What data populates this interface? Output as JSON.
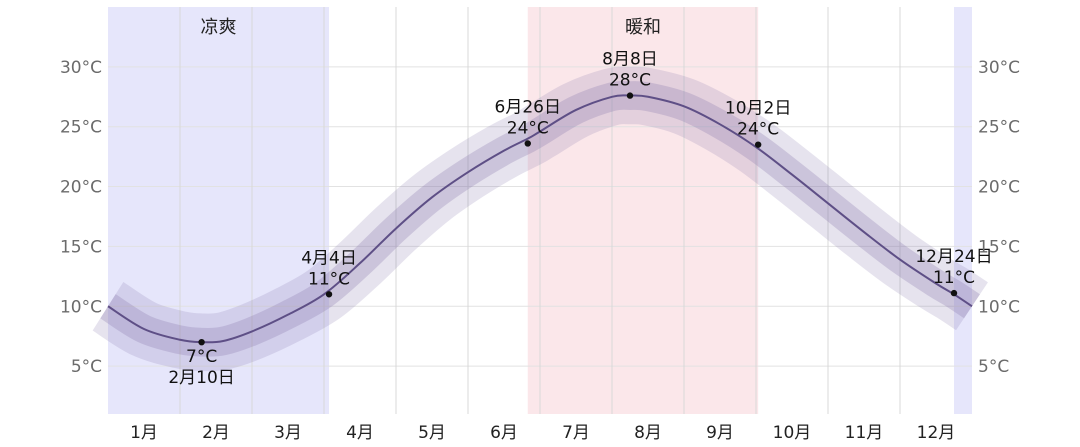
{
  "chart_data": {
    "type": "line",
    "title": "",
    "xlabel": "",
    "ylabel": "",
    "x_range_months": [
      0,
      12
    ],
    "ylim": [
      1,
      35
    ],
    "y_ticks": [
      5,
      10,
      15,
      20,
      25,
      30
    ],
    "y_tick_labels": [
      "5°C",
      "10°C",
      "15°C",
      "20°C",
      "25°C",
      "30°C"
    ],
    "months": [
      "1月",
      "2月",
      "3月",
      "4月",
      "5月",
      "6月",
      "7月",
      "8月",
      "9月",
      "10月",
      "11月",
      "12月"
    ],
    "bands": [
      {
        "label": "凉爽",
        "start": 0,
        "end": 3.07,
        "color": "#e6e6fb"
      },
      {
        "label": "暖和",
        "start": 5.83,
        "end": 9.03,
        "color": "#fbe7ea"
      },
      {
        "label": "",
        "start": 11.75,
        "end": 12,
        "color": "#e6e6fb"
      }
    ],
    "series": [
      {
        "color": "#5e4f86",
        "x": [
          0,
          0.5,
          1,
          1.3,
          1.6,
          2,
          2.5,
          3,
          3.5,
          4,
          4.5,
          5,
          5.5,
          5.83,
          6,
          6.5,
          7,
          7.25,
          7.5,
          8,
          8.5,
          9,
          9.5,
          10,
          10.5,
          11,
          11.5,
          11.75,
          12
        ],
        "y": [
          10.0,
          8.1,
          7.2,
          7.0,
          7.1,
          7.9,
          9.3,
          11.0,
          13.6,
          16.5,
          19.1,
          21.2,
          23.0,
          24.0,
          24.6,
          26.4,
          27.5,
          27.6,
          27.5,
          26.7,
          25.2,
          23.3,
          21.0,
          18.6,
          16.2,
          13.9,
          11.9,
          11.0,
          10.0
        ],
        "band_inner": 1.2,
        "band_outer": 2.4
      }
    ],
    "annotations": [
      {
        "x": 1.3,
        "y": 7,
        "lines": [
          "7°C",
          "2月10日"
        ],
        "position": "below"
      },
      {
        "x": 3.07,
        "y": 11,
        "lines": [
          "4月4日",
          "11°C"
        ],
        "position": "above"
      },
      {
        "x": 5.83,
        "y": 23.6,
        "lines": [
          "6月26日",
          "24°C"
        ],
        "position": "above"
      },
      {
        "x": 7.25,
        "y": 27.6,
        "lines": [
          "8月8日",
          "28°C"
        ],
        "position": "above"
      },
      {
        "x": 9.03,
        "y": 23.5,
        "lines": [
          "10月2日",
          "24°C"
        ],
        "position": "above"
      },
      {
        "x": 11.75,
        "y": 11.1,
        "lines": [
          "12月24日",
          "11°C"
        ],
        "position": "above"
      }
    ]
  }
}
